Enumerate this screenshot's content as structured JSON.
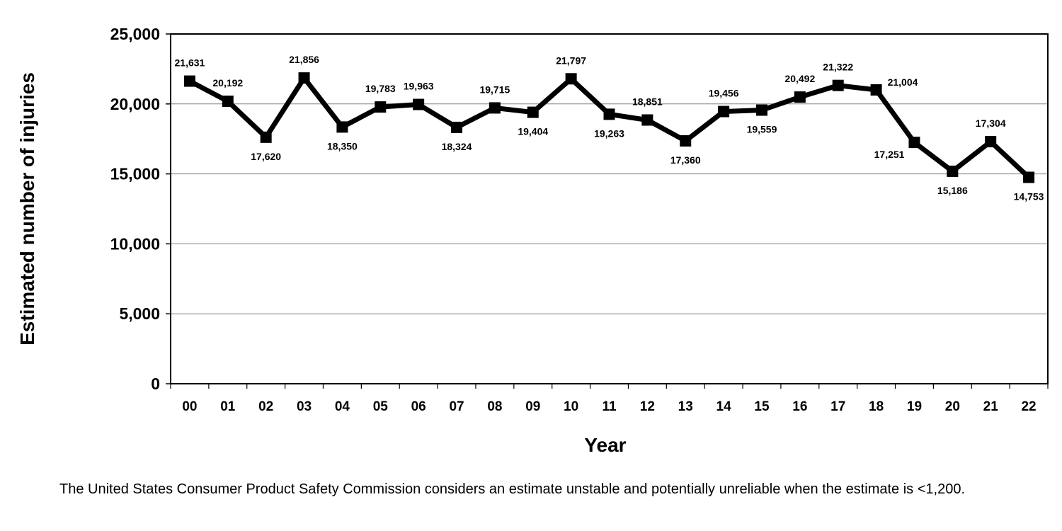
{
  "chart_data": {
    "type": "line",
    "title": "",
    "xlabel": "Year",
    "ylabel": "Estimated number of injuries",
    "categories": [
      "00",
      "01",
      "02",
      "03",
      "04",
      "05",
      "06",
      "07",
      "08",
      "09",
      "10",
      "11",
      "12",
      "13",
      "14",
      "15",
      "16",
      "17",
      "18",
      "19",
      "20",
      "21",
      "22"
    ],
    "series": [
      {
        "name": "Estimated number of injuries",
        "values": [
          21631,
          20192,
          17620,
          21856,
          18350,
          19783,
          19963,
          18324,
          19715,
          19404,
          21797,
          19263,
          18851,
          17360,
          19456,
          19559,
          20492,
          21322,
          21004,
          17251,
          15186,
          17304,
          14753
        ],
        "labels": [
          "21,631",
          "20,192",
          "17,620",
          "21,856",
          "18,350",
          "19,783",
          "19,963",
          "18,324",
          "19,715",
          "19,404",
          "21,797",
          "19,263",
          "18,851",
          "17,360",
          "19,456",
          "19,559",
          "20,492",
          "21,322",
          "21,004",
          "17,251",
          "15,186",
          "17,304",
          "14,753"
        ],
        "label_position": [
          "above",
          "above",
          "below",
          "above",
          "below",
          "above",
          "above",
          "below",
          "above",
          "below",
          "above",
          "below",
          "above",
          "below",
          "above",
          "below",
          "above",
          "above",
          "right",
          "left",
          "below",
          "above",
          "below"
        ],
        "color": "#000000",
        "marker": "square"
      }
    ],
    "ylim": [
      0,
      25000
    ],
    "yticks": [
      0,
      5000,
      10000,
      15000,
      20000,
      25000
    ],
    "ytick_labels": [
      "0",
      "5,000",
      "10,000",
      "15,000",
      "20,000",
      "25,000"
    ],
    "grid": true,
    "legend": "none"
  },
  "footnote": "The United States Consumer Product Safety Commission considers an estimate unstable and potentially unreliable when the estimate is <1,200."
}
